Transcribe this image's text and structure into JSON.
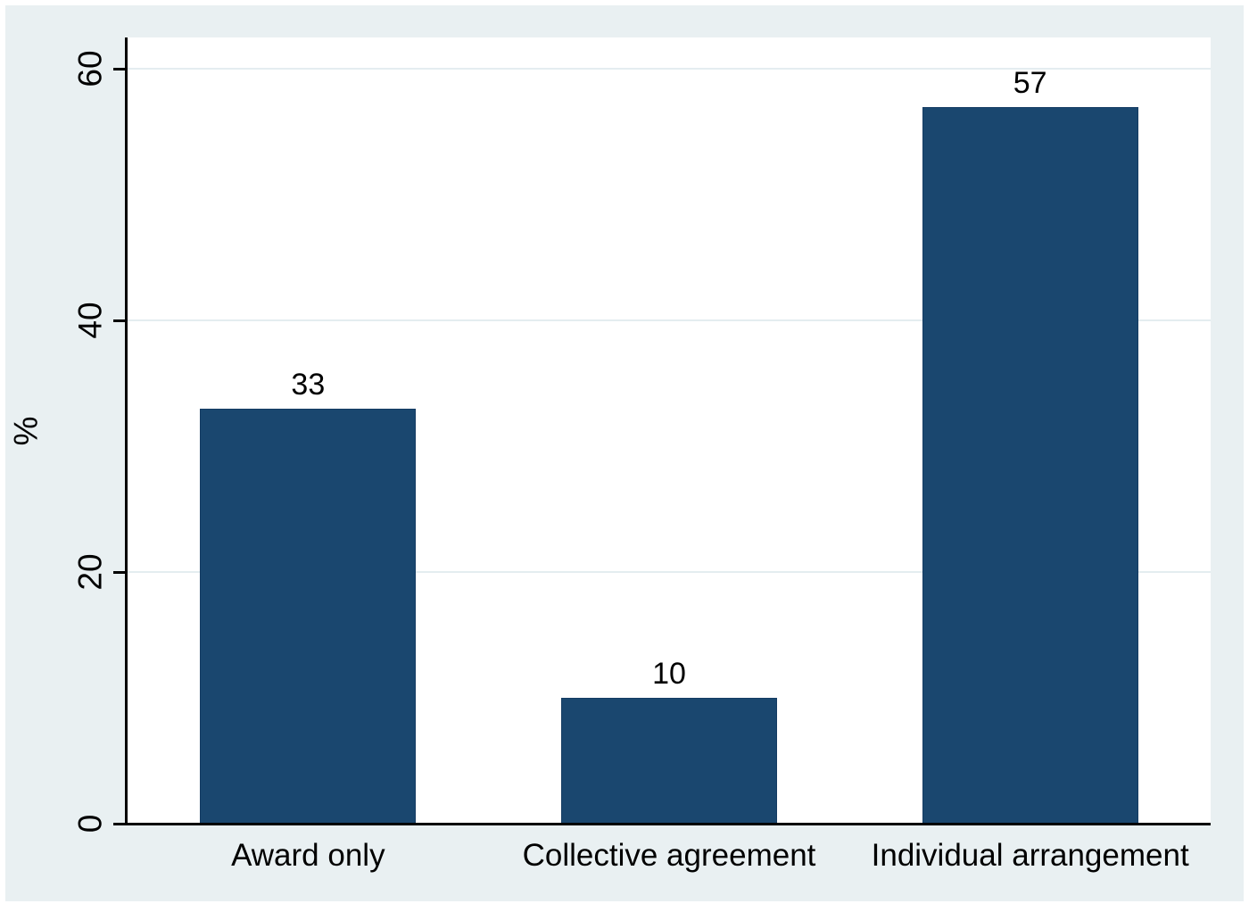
{
  "figure": {
    "outer_margin_color": "#ffffff",
    "background_color": "#e9f0f2",
    "plot_background_color": "#ffffff"
  },
  "chart_data": {
    "type": "bar",
    "title": "",
    "categories": [
      "Award only",
      "Collective agreement",
      "Individual arrangement"
    ],
    "values": [
      33,
      10,
      57
    ],
    "bar_value_labels": [
      "33",
      "10",
      "57"
    ],
    "xlabel": "",
    "ylabel": "%",
    "ylim": [
      0,
      62.5
    ],
    "yticks": [
      0,
      20,
      40,
      60
    ],
    "grid": true,
    "legend_position": "none",
    "bar_color": "#1a476f",
    "bar_border_color": "#153c63",
    "gridline_color": "#e4edf0",
    "axis_color": "#000000",
    "text_color": "#000000"
  }
}
